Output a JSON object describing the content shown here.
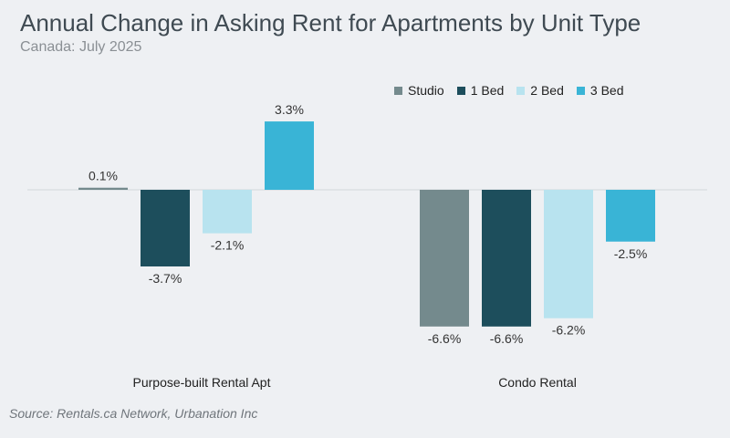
{
  "title": "Annual Change in Asking Rent for Apartments by Unit Type",
  "subtitle": "Canada: July 2025",
  "source": "Source: Rentals.ca Network, Urbanation Inc",
  "chart_data": {
    "type": "bar",
    "categories": [
      "Purpose-built Rental Apt",
      "Condo Rental"
    ],
    "series": [
      {
        "name": "Studio",
        "values": [
          0.1,
          -6.6
        ],
        "labels": [
          "0.1%",
          "-6.6%"
        ],
        "color": "#748a8d"
      },
      {
        "name": "1 Bed",
        "values": [
          -3.7,
          -6.6
        ],
        "labels": [
          "-3.7%",
          "-6.6%"
        ],
        "color": "#1d4e5c"
      },
      {
        "name": "2 Bed",
        "values": [
          -2.1,
          -6.2
        ],
        "labels": [
          "-2.1%",
          "-6.2%"
        ],
        "color": "#b8e3ef"
      },
      {
        "name": "3 Bed",
        "values": [
          3.3,
          -2.5
        ],
        "labels": [
          "3.3%",
          "-2.5%"
        ],
        "color": "#39b4d6"
      }
    ],
    "value_suffix": "%",
    "legend_position": "top-right",
    "grid": false
  }
}
